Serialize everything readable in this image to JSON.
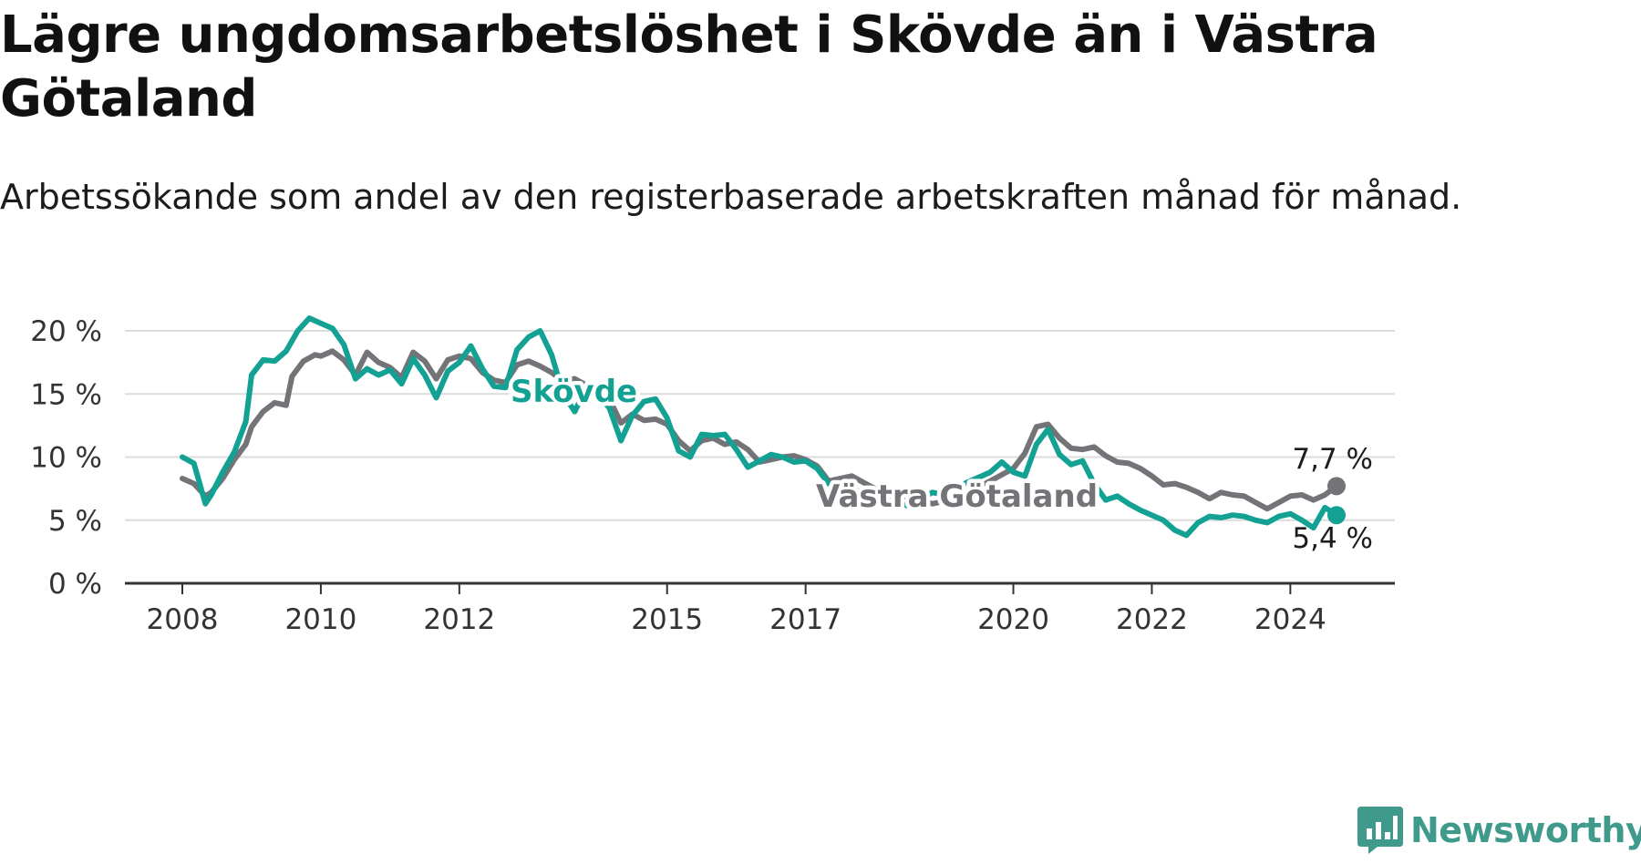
{
  "title": "Lägre ungdomsarbetslöshet i Skövde än i Västra Götaland",
  "subtitle": "Arbetssökande som andel av den registerbaserade arbetskraften månad för månad.",
  "brand": {
    "name": "Newsworthy",
    "icon": "newsworthy-logo-icon"
  },
  "colors": {
    "skovde": "#12a193",
    "vastra_gotaland": "#737378",
    "grid": "#dcdcdc",
    "axis": "#333333",
    "brand": "#3f9a8b"
  },
  "chart_data": {
    "type": "line",
    "title": "Lägre ungdomsarbetslöshet i Skövde än i Västra Götaland",
    "subtitle": "Arbetssökande som andel av den registerbaserade arbetskraften månad för månad.",
    "x_ticks": [
      "2008",
      "2010",
      "2012",
      "2015",
      "2017",
      "2020",
      "2022",
      "2024"
    ],
    "y_ticks": [
      {
        "value": 0,
        "label": "0 %"
      },
      {
        "value": 5,
        "label": "5 %"
      },
      {
        "value": 10,
        "label": "10 %"
      },
      {
        "value": 15,
        "label": "15 %"
      },
      {
        "value": 20,
        "label": "20 %"
      }
    ],
    "ylim": [
      0,
      20
    ],
    "xlim": [
      "2008-01",
      "2024-09"
    ],
    "grid": "horizontal",
    "series": [
      {
        "name": "Västra Götaland",
        "label": "Västra Götaland",
        "end_label": "7,7 %",
        "color": "#737378",
        "points": [
          [
            "2008-01",
            8.3
          ],
          [
            "2008-03",
            7.9
          ],
          [
            "2008-05",
            6.9
          ],
          [
            "2008-06",
            7.2
          ],
          [
            "2008-08",
            8.3
          ],
          [
            "2008-10",
            9.8
          ],
          [
            "2008-12",
            11.0
          ],
          [
            "2009-01",
            12.4
          ],
          [
            "2009-03",
            13.6
          ],
          [
            "2009-05",
            14.3
          ],
          [
            "2009-07",
            14.1
          ],
          [
            "2009-08",
            16.4
          ],
          [
            "2009-10",
            17.6
          ],
          [
            "2009-12",
            18.1
          ],
          [
            "2010-01",
            18.0
          ],
          [
            "2010-03",
            18.4
          ],
          [
            "2010-05",
            17.7
          ],
          [
            "2010-07",
            16.5
          ],
          [
            "2010-09",
            18.3
          ],
          [
            "2010-11",
            17.5
          ],
          [
            "2011-01",
            17.1
          ],
          [
            "2011-03",
            16.3
          ],
          [
            "2011-05",
            18.3
          ],
          [
            "2011-07",
            17.6
          ],
          [
            "2011-09",
            16.2
          ],
          [
            "2011-11",
            17.7
          ],
          [
            "2012-01",
            18.0
          ],
          [
            "2012-03",
            17.8
          ],
          [
            "2012-05",
            16.7
          ],
          [
            "2012-07",
            16.1
          ],
          [
            "2012-09",
            15.9
          ],
          [
            "2012-11",
            17.3
          ],
          [
            "2013-01",
            17.6
          ],
          [
            "2013-03",
            17.2
          ],
          [
            "2013-05",
            16.7
          ],
          [
            "2013-07",
            16.0
          ],
          [
            "2013-09",
            16.2
          ],
          [
            "2013-11",
            15.7
          ],
          [
            "2014-01",
            15.4
          ],
          [
            "2014-03",
            14.6
          ],
          [
            "2014-05",
            12.7
          ],
          [
            "2014-07",
            13.4
          ],
          [
            "2014-09",
            12.9
          ],
          [
            "2014-11",
            13.0
          ],
          [
            "2015-01",
            12.6
          ],
          [
            "2015-03",
            11.3
          ],
          [
            "2015-05",
            10.5
          ],
          [
            "2015-07",
            11.3
          ],
          [
            "2015-09",
            11.5
          ],
          [
            "2015-11",
            11.0
          ],
          [
            "2016-01",
            11.2
          ],
          [
            "2016-03",
            10.6
          ],
          [
            "2016-05",
            9.6
          ],
          [
            "2016-07",
            9.8
          ],
          [
            "2016-09",
            10.0
          ],
          [
            "2016-11",
            10.1
          ],
          [
            "2017-01",
            9.8
          ],
          [
            "2017-03",
            9.3
          ],
          [
            "2017-05",
            8.1
          ],
          [
            "2017-07",
            8.3
          ],
          [
            "2017-09",
            8.5
          ],
          [
            "2017-11",
            8.0
          ],
          [
            "2018-01",
            7.5
          ],
          [
            "2018-03",
            7.4
          ],
          [
            "2018-05",
            7.0
          ],
          [
            "2018-07",
            6.8
          ],
          [
            "2018-09",
            6.5
          ],
          [
            "2018-11",
            6.3
          ],
          [
            "2019-01",
            6.5
          ],
          [
            "2019-03",
            6.8
          ],
          [
            "2019-05",
            7.1
          ],
          [
            "2019-07",
            7.6
          ],
          [
            "2019-09",
            8.1
          ],
          [
            "2019-11",
            8.6
          ],
          [
            "2020-01",
            9.1
          ],
          [
            "2020-03",
            10.3
          ],
          [
            "2020-05",
            12.4
          ],
          [
            "2020-07",
            12.6
          ],
          [
            "2020-09",
            11.5
          ],
          [
            "2020-11",
            10.7
          ],
          [
            "2021-01",
            10.6
          ],
          [
            "2021-03",
            10.8
          ],
          [
            "2021-05",
            10.1
          ],
          [
            "2021-07",
            9.6
          ],
          [
            "2021-09",
            9.5
          ],
          [
            "2021-11",
            9.1
          ],
          [
            "2022-01",
            8.5
          ],
          [
            "2022-03",
            7.8
          ],
          [
            "2022-05",
            7.9
          ],
          [
            "2022-07",
            7.6
          ],
          [
            "2022-09",
            7.2
          ],
          [
            "2022-11",
            6.7
          ],
          [
            "2023-01",
            7.2
          ],
          [
            "2023-03",
            7.0
          ],
          [
            "2023-05",
            6.9
          ],
          [
            "2023-07",
            6.4
          ],
          [
            "2023-09",
            5.9
          ],
          [
            "2023-11",
            6.4
          ],
          [
            "2024-01",
            6.9
          ],
          [
            "2024-03",
            7.0
          ],
          [
            "2024-05",
            6.6
          ],
          [
            "2024-07",
            7.0
          ],
          [
            "2024-09",
            7.7
          ]
        ]
      },
      {
        "name": "Skövde",
        "label": "Skövde",
        "end_label": "5,4 %",
        "color": "#12a193",
        "points": [
          [
            "2008-01",
            10.0
          ],
          [
            "2008-03",
            9.5
          ],
          [
            "2008-05",
            6.3
          ],
          [
            "2008-06",
            7.0
          ],
          [
            "2008-08",
            8.8
          ],
          [
            "2008-10",
            10.4
          ],
          [
            "2008-12",
            12.8
          ],
          [
            "2009-01",
            16.5
          ],
          [
            "2009-03",
            17.7
          ],
          [
            "2009-05",
            17.6
          ],
          [
            "2009-07",
            18.4
          ],
          [
            "2009-09",
            20.0
          ],
          [
            "2009-11",
            21.0
          ],
          [
            "2010-01",
            20.6
          ],
          [
            "2010-03",
            20.2
          ],
          [
            "2010-05",
            18.9
          ],
          [
            "2010-07",
            16.2
          ],
          [
            "2010-09",
            17.0
          ],
          [
            "2010-11",
            16.5
          ],
          [
            "2011-01",
            16.9
          ],
          [
            "2011-03",
            15.8
          ],
          [
            "2011-05",
            17.8
          ],
          [
            "2011-07",
            16.5
          ],
          [
            "2011-09",
            14.7
          ],
          [
            "2011-11",
            16.8
          ],
          [
            "2012-01",
            17.5
          ],
          [
            "2012-03",
            18.8
          ],
          [
            "2012-05",
            17.0
          ],
          [
            "2012-07",
            15.6
          ],
          [
            "2012-09",
            15.5
          ],
          [
            "2012-11",
            18.5
          ],
          [
            "2013-01",
            19.5
          ],
          [
            "2013-03",
            20.0
          ],
          [
            "2013-05",
            18.1
          ],
          [
            "2013-07",
            15.0
          ],
          [
            "2013-09",
            13.6
          ],
          [
            "2013-11",
            15.5
          ],
          [
            "2014-01",
            14.9
          ],
          [
            "2014-03",
            13.9
          ],
          [
            "2014-05",
            11.3
          ],
          [
            "2014-07",
            13.3
          ],
          [
            "2014-09",
            14.4
          ],
          [
            "2014-11",
            14.6
          ],
          [
            "2015-01",
            13.1
          ],
          [
            "2015-03",
            10.5
          ],
          [
            "2015-05",
            10.0
          ],
          [
            "2015-07",
            11.8
          ],
          [
            "2015-09",
            11.7
          ],
          [
            "2015-11",
            11.8
          ],
          [
            "2016-01",
            10.6
          ],
          [
            "2016-03",
            9.2
          ],
          [
            "2016-05",
            9.7
          ],
          [
            "2016-07",
            10.2
          ],
          [
            "2016-09",
            10.0
          ],
          [
            "2016-11",
            9.6
          ],
          [
            "2017-01",
            9.7
          ],
          [
            "2017-03",
            9.1
          ],
          [
            "2017-05",
            7.9
          ],
          [
            "2017-07",
            7.4
          ],
          [
            "2017-09",
            7.6
          ],
          [
            "2017-11",
            7.0
          ],
          [
            "2018-01",
            6.8
          ],
          [
            "2018-03",
            6.6
          ],
          [
            "2018-05",
            6.4
          ],
          [
            "2018-07",
            6.1
          ],
          [
            "2018-09",
            6.7
          ],
          [
            "2018-11",
            7.2
          ],
          [
            "2019-01",
            7.0
          ],
          [
            "2019-03",
            7.5
          ],
          [
            "2019-05",
            8.0
          ],
          [
            "2019-07",
            8.4
          ],
          [
            "2019-09",
            8.8
          ],
          [
            "2019-11",
            9.6
          ],
          [
            "2020-01",
            8.8
          ],
          [
            "2020-03",
            8.5
          ],
          [
            "2020-05",
            11.0
          ],
          [
            "2020-07",
            12.2
          ],
          [
            "2020-09",
            10.2
          ],
          [
            "2020-11",
            9.4
          ],
          [
            "2021-01",
            9.7
          ],
          [
            "2021-03",
            7.9
          ],
          [
            "2021-05",
            6.6
          ],
          [
            "2021-07",
            6.9
          ],
          [
            "2021-09",
            6.3
          ],
          [
            "2021-11",
            5.8
          ],
          [
            "2022-01",
            5.4
          ],
          [
            "2022-03",
            5.0
          ],
          [
            "2022-05",
            4.2
          ],
          [
            "2022-07",
            3.8
          ],
          [
            "2022-09",
            4.8
          ],
          [
            "2022-11",
            5.3
          ],
          [
            "2023-01",
            5.2
          ],
          [
            "2023-03",
            5.4
          ],
          [
            "2023-05",
            5.3
          ],
          [
            "2023-07",
            5.0
          ],
          [
            "2023-09",
            4.8
          ],
          [
            "2023-11",
            5.3
          ],
          [
            "2024-01",
            5.5
          ],
          [
            "2024-03",
            5.0
          ],
          [
            "2024-05",
            4.4
          ],
          [
            "2024-07",
            6.0
          ],
          [
            "2024-09",
            5.4
          ]
        ]
      }
    ]
  }
}
